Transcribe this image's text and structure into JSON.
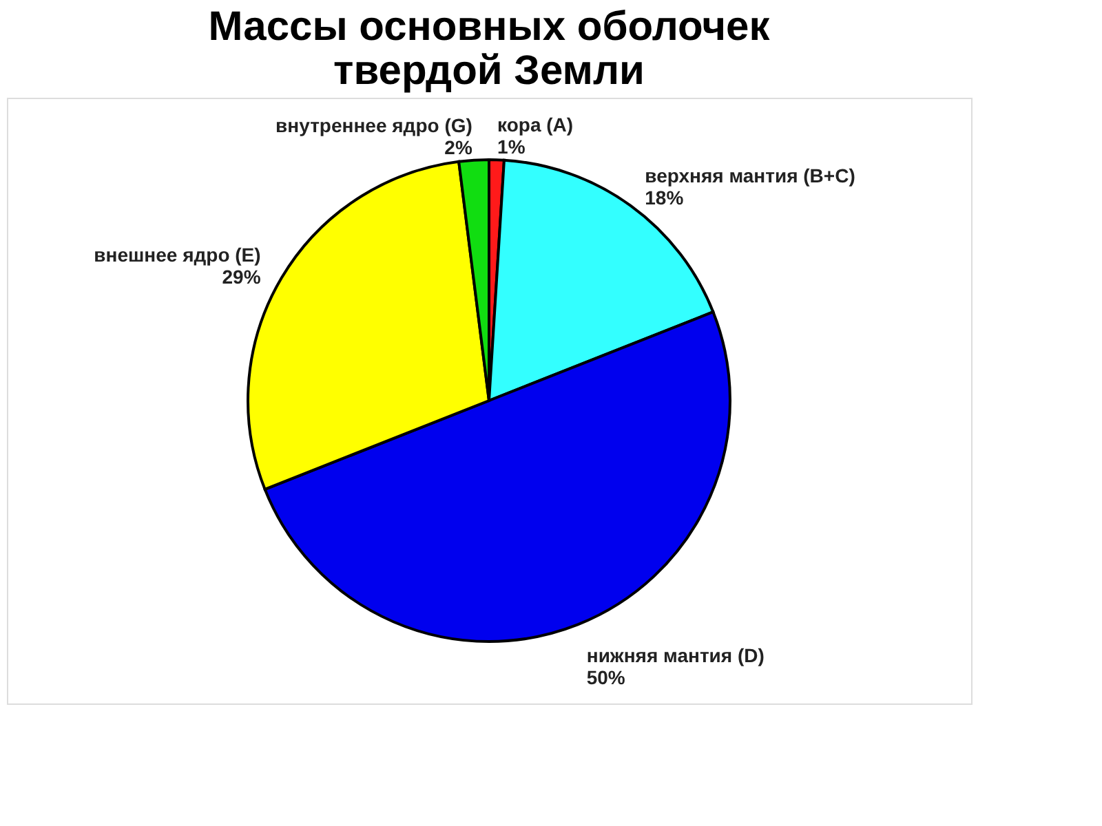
{
  "chart_data": {
    "type": "pie",
    "title": "Массы основных оболочек\nтвердой Земли",
    "categories": [
      "кора (A)",
      "верхняя мантия (B+C)",
      "нижняя мантия (D)",
      "внешнее ядро (E)",
      "внутреннее ядро (G)"
    ],
    "values": [
      1,
      18,
      50,
      29,
      2
    ],
    "value_labels": [
      "1%",
      "18%",
      "50%",
      "29%",
      "2%"
    ],
    "colors": [
      "#ff1a1a",
      "#33ffff",
      "#0000ee",
      "#ffff00",
      "#11dd11"
    ],
    "legend": false
  }
}
